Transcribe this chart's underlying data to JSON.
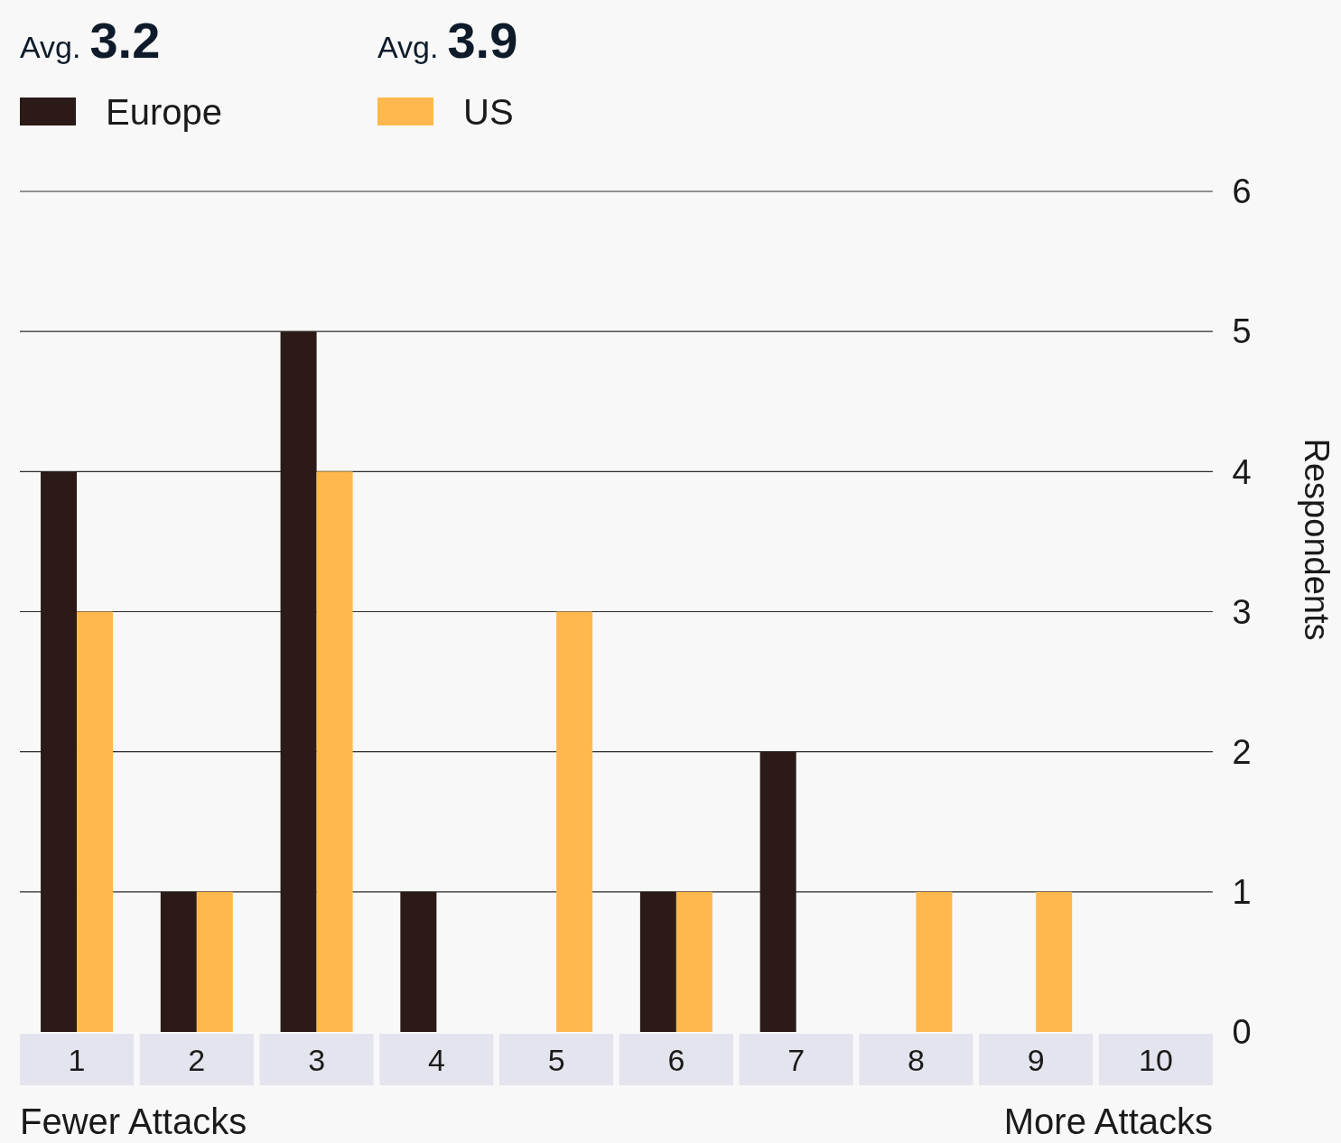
{
  "chart_data": {
    "type": "bar",
    "ylabel": "Respondents",
    "categories": [
      "1",
      "2",
      "3",
      "4",
      "5",
      "6",
      "7",
      "8",
      "9",
      "10"
    ],
    "series": [
      {
        "name": "Europe",
        "color": "#2b1a17",
        "values": [
          4,
          1,
          5,
          1,
          0,
          1,
          2,
          0,
          0,
          0
        ]
      },
      {
        "name": "US",
        "color": "#ffb84d",
        "values": [
          3,
          1,
          4,
          0,
          3,
          1,
          0,
          1,
          1,
          0
        ]
      }
    ],
    "ylim": [
      0,
      6
    ],
    "yticks": [
      0,
      1,
      2,
      3,
      4,
      5,
      6
    ],
    "grid": "y",
    "legend": "top left",
    "annotations": [
      "Avg. 3.2",
      "Avg. 3.9",
      "Fewer Attacks",
      "More Attacks"
    ]
  }
}
